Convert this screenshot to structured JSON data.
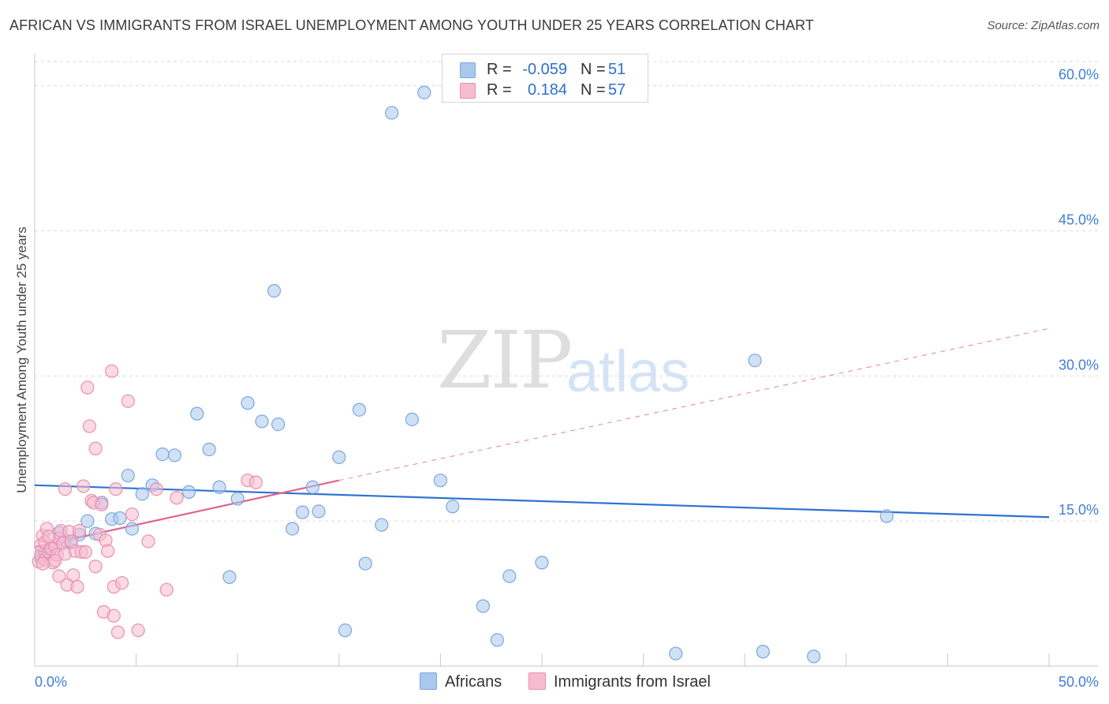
{
  "header": {
    "title": "AFRICAN VS IMMIGRANTS FROM ISRAEL UNEMPLOYMENT AMONG YOUTH UNDER 25 YEARS CORRELATION CHART",
    "source": "Source: ZipAtlas.com"
  },
  "watermark": {
    "zip": "ZIP",
    "atlas": "atlas"
  },
  "legend": {
    "r_label": "R =",
    "n_label": "N =",
    "africans": {
      "r": "-0.059",
      "n": "51"
    },
    "israel": {
      "r": "0.184",
      "n": "57"
    }
  },
  "colors": {
    "africans_fill": "#a9c8ef",
    "africans_stroke": "#7aa6de",
    "africans_line": "#2f72cf",
    "israel_fill": "#f6bbcf",
    "israel_stroke": "#ea8fae",
    "israel_line": "#e0638f",
    "tick_label": "#3f7fd4"
  },
  "chart_data": {
    "type": "scatter",
    "title": "AFRICAN VS IMMIGRANTS FROM ISRAEL UNEMPLOYMENT AMONG YOUTH UNDER 25 YEARS CORRELATION CHART",
    "xlabel": "",
    "ylabel": "Unemployment Among Youth under 25 years",
    "xlim": [
      0,
      50
    ],
    "ylim": [
      0,
      62.5
    ],
    "x_tick_labels": [
      "0.0%",
      "50.0%"
    ],
    "y_ticks": [
      15,
      30,
      45,
      60
    ],
    "y_tick_labels": [
      "15.0%",
      "30.0%",
      "45.0%",
      "60.0%"
    ],
    "grid": true,
    "series": [
      {
        "name": "Africans",
        "r": -0.059,
        "n": 51,
        "trend": {
          "x": [
            0,
            50
          ],
          "y": [
            18.7,
            15.4
          ],
          "dashed_extension": false
        },
        "points": [
          [
            0.3,
            11.2
          ],
          [
            0.5,
            11.8
          ],
          [
            0.8,
            12.3
          ],
          [
            1.2,
            13.8
          ],
          [
            1.5,
            13.0
          ],
          [
            1.8,
            12.8
          ],
          [
            2.2,
            13.6
          ],
          [
            2.6,
            15.0
          ],
          [
            3.0,
            13.7
          ],
          [
            3.3,
            16.9
          ],
          [
            3.8,
            15.2
          ],
          [
            4.2,
            15.3
          ],
          [
            4.6,
            19.7
          ],
          [
            4.8,
            14.2
          ],
          [
            5.3,
            17.8
          ],
          [
            5.8,
            18.7
          ],
          [
            6.3,
            21.9
          ],
          [
            6.9,
            21.8
          ],
          [
            7.6,
            18.0
          ],
          [
            8.0,
            26.1
          ],
          [
            8.6,
            22.4
          ],
          [
            9.1,
            18.5
          ],
          [
            9.6,
            9.2
          ],
          [
            10.0,
            17.3
          ],
          [
            10.5,
            27.2
          ],
          [
            11.2,
            25.3
          ],
          [
            11.8,
            38.8
          ],
          [
            12.0,
            25.0
          ],
          [
            12.7,
            14.2
          ],
          [
            13.2,
            15.9
          ],
          [
            13.7,
            18.5
          ],
          [
            14.0,
            16.0
          ],
          [
            15.0,
            21.6
          ],
          [
            15.3,
            3.7
          ],
          [
            16.0,
            26.5
          ],
          [
            16.3,
            10.6
          ],
          [
            17.1,
            14.6
          ],
          [
            17.6,
            57.2
          ],
          [
            18.6,
            25.5
          ],
          [
            19.2,
            59.3
          ],
          [
            20.0,
            19.2
          ],
          [
            20.6,
            16.5
          ],
          [
            22.1,
            6.2
          ],
          [
            22.8,
            2.7
          ],
          [
            23.4,
            9.3
          ],
          [
            25.0,
            10.7
          ],
          [
            31.6,
            1.3
          ],
          [
            35.5,
            31.6
          ],
          [
            35.9,
            1.5
          ],
          [
            38.4,
            1.0
          ],
          [
            42.0,
            15.5
          ]
        ]
      },
      {
        "name": "Immigrants from Israel",
        "r": 0.184,
        "n": 57,
        "trend": {
          "x": [
            0,
            15
          ],
          "y": [
            12.3,
            19.2
          ],
          "dashed_extension": {
            "x": [
              15,
              50
            ],
            "y": [
              19.2,
              34.9
            ]
          }
        },
        "points": [
          [
            0.2,
            10.8
          ],
          [
            0.3,
            11.5
          ],
          [
            0.3,
            12.5
          ],
          [
            0.4,
            13.5
          ],
          [
            0.5,
            12.8
          ],
          [
            0.5,
            11.0
          ],
          [
            0.6,
            14.2
          ],
          [
            0.7,
            11.8
          ],
          [
            0.8,
            12.1
          ],
          [
            0.9,
            10.7
          ],
          [
            1.0,
            12.4
          ],
          [
            1.1,
            11.5
          ],
          [
            1.2,
            13.2
          ],
          [
            1.2,
            9.3
          ],
          [
            1.3,
            14.0
          ],
          [
            1.4,
            12.7
          ],
          [
            1.5,
            11.6
          ],
          [
            1.5,
            18.3
          ],
          [
            1.6,
            8.4
          ],
          [
            1.7,
            13.9
          ],
          [
            1.8,
            12.9
          ],
          [
            1.9,
            9.4
          ],
          [
            2.0,
            11.9
          ],
          [
            2.1,
            8.2
          ],
          [
            2.2,
            14.0
          ],
          [
            2.3,
            11.8
          ],
          [
            2.4,
            18.6
          ],
          [
            2.5,
            11.8
          ],
          [
            2.6,
            28.8
          ],
          [
            2.7,
            24.8
          ],
          [
            2.8,
            17.1
          ],
          [
            2.9,
            16.9
          ],
          [
            3.0,
            22.5
          ],
          [
            3.0,
            10.3
          ],
          [
            3.2,
            13.6
          ],
          [
            3.3,
            16.7
          ],
          [
            3.4,
            5.6
          ],
          [
            3.5,
            13.0
          ],
          [
            3.6,
            11.9
          ],
          [
            3.8,
            30.5
          ],
          [
            3.9,
            5.2
          ],
          [
            3.9,
            8.2
          ],
          [
            4.0,
            18.3
          ],
          [
            4.1,
            3.5
          ],
          [
            4.3,
            8.6
          ],
          [
            4.6,
            27.4
          ],
          [
            4.8,
            15.7
          ],
          [
            5.1,
            3.7
          ],
          [
            5.6,
            12.9
          ],
          [
            6.0,
            18.3
          ],
          [
            6.5,
            7.9
          ],
          [
            7.0,
            17.4
          ],
          [
            10.5,
            19.2
          ],
          [
            10.9,
            19.0
          ],
          [
            0.4,
            10.6
          ],
          [
            0.7,
            13.4
          ],
          [
            1.0,
            10.9
          ]
        ]
      }
    ]
  },
  "bottom_legend": {
    "africans": "Africans",
    "israel": "Immigrants from Israel"
  }
}
